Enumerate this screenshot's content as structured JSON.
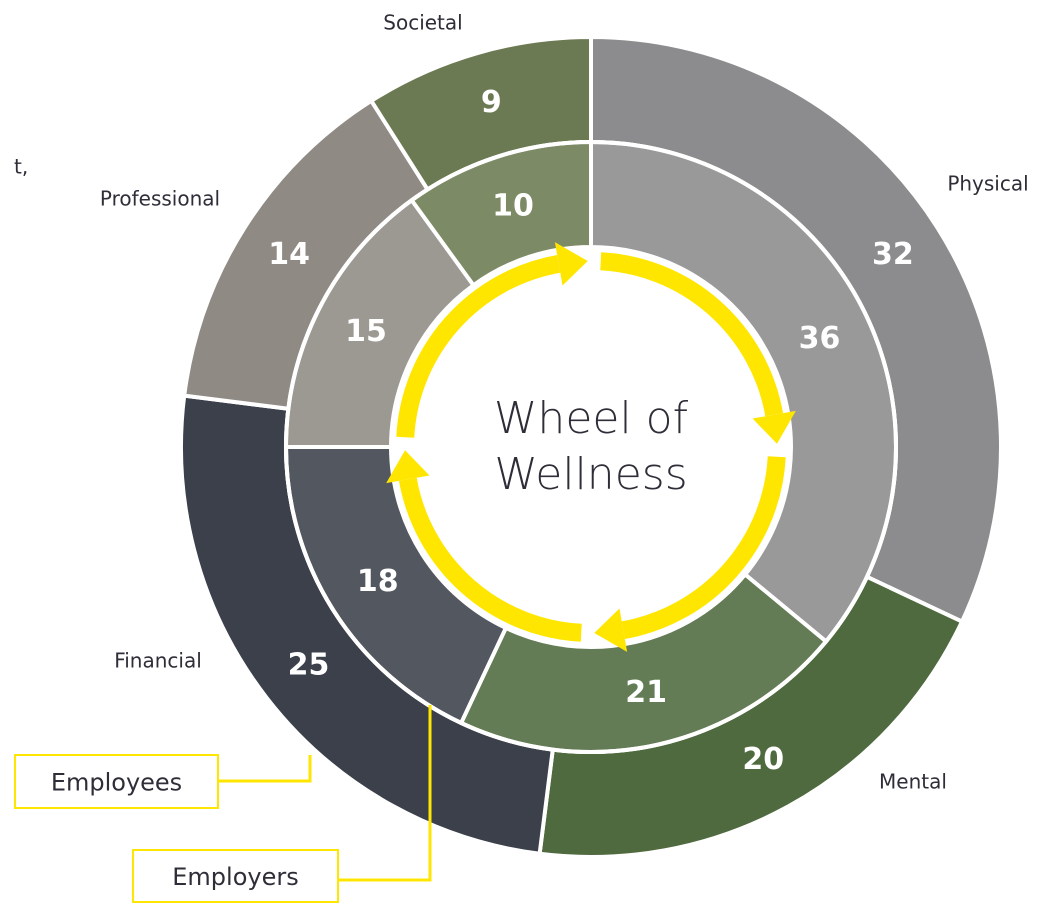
{
  "chart_data": {
    "type": "pie",
    "categories": [
      "Physical",
      "Mental",
      "Financial",
      "Professional",
      "Societal"
    ],
    "colors": [
      "#8c8b8d",
      "#4f6a3e",
      "#3b404b",
      "#8f8a83",
      "#6b7a52"
    ],
    "series": [
      {
        "name": "Employees",
        "values": [
          32,
          20,
          25,
          14,
          9
        ]
      },
      {
        "name": "Employers",
        "values": [
          36,
          21,
          18,
          15,
          10
        ]
      }
    ],
    "center_label": [
      "Wheel of",
      "Wellness"
    ]
  },
  "clipped_text": "t,"
}
